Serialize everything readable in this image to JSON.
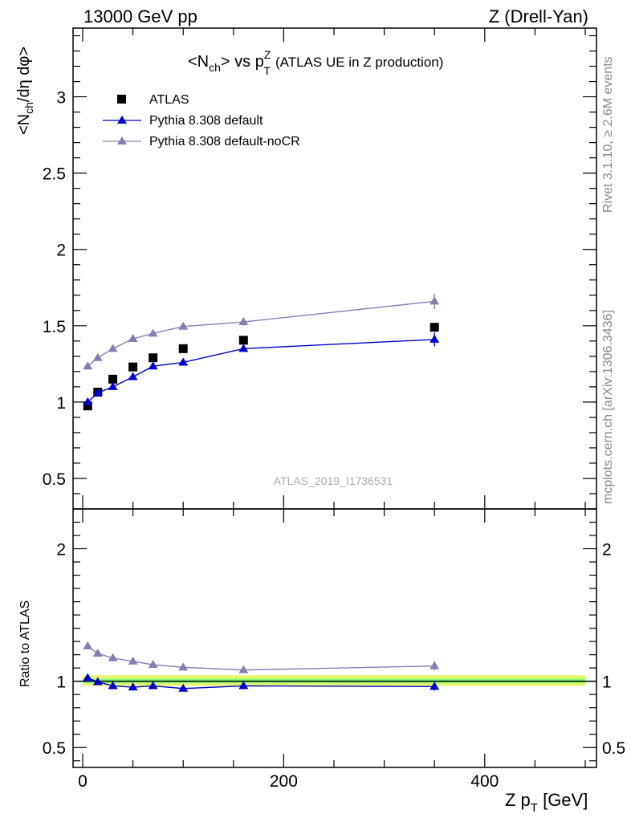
{
  "header": {
    "left": "13000 GeV pp",
    "right": "Z (Drell-Yan)"
  },
  "side_labels": {
    "rivet": "Rivet 3.1.10, ≥ 2.6M events",
    "mcplots": "mcplots.cern.ch [arXiv:1306.3436]"
  },
  "plot": {
    "title_main": "<N",
    "title_sub": "ch",
    "title_vs": "> vs p",
    "title_supZ": "Z",
    "title_subT": "T",
    "title_extra": "(ATLAS UE in Z production)",
    "ylabel": "<N_ch/dη dφ>",
    "ylabel_pre": "<N",
    "ylabel_sub": "ch",
    "ylabel_post": "/dη dφ>",
    "ratio_ylabel": "Ratio to ATLAS",
    "xlabel_pre": "Z p",
    "xlabel_sub": "T",
    "xlabel_post": " [GeV]",
    "reference": "ATLAS_2019_I1736531"
  },
  "colors": {
    "data": "#000000",
    "default": "#0000cc",
    "noCR": "#8080b3",
    "band_outer": "#eaf56e",
    "band_inner": "#88ff7a"
  },
  "chart_data": {
    "type": "scatter",
    "x_range": [
      0,
      500
    ],
    "ylim_main": [
      0.3,
      3.45
    ],
    "ylim_ratio": [
      0.35,
      2.3
    ],
    "x_ticks": [
      0,
      200,
      400
    ],
    "y_ticks_main": [
      0.5,
      1,
      1.5,
      2,
      2.5,
      3
    ],
    "y_ticks_ratio": [
      0.5,
      1,
      2
    ],
    "x": [
      5,
      15,
      30,
      50,
      70,
      100,
      160,
      350
    ],
    "series": [
      {
        "name": "ATLAS",
        "marker": "square",
        "values": [
          0.975,
          1.065,
          1.15,
          1.23,
          1.29,
          1.35,
          1.405,
          1.49
        ]
      },
      {
        "name": "Pythia 8.308 default",
        "marker": "triangle",
        "values": [
          1.0,
          1.06,
          1.1,
          1.165,
          1.235,
          1.26,
          1.35,
          1.41
        ],
        "errors": [
          0.01,
          0.01,
          0.01,
          0.01,
          0.01,
          0.012,
          0.02,
          0.045
        ]
      },
      {
        "name": "Pythia 8.308 default-noCR",
        "marker": "triangle",
        "values": [
          1.235,
          1.29,
          1.35,
          1.415,
          1.45,
          1.495,
          1.525,
          1.66
        ],
        "errors": [
          0.01,
          0.01,
          0.01,
          0.01,
          0.01,
          0.012,
          0.025,
          0.05
        ]
      }
    ],
    "ratio_series": [
      {
        "name": "Pythia 8.308 default",
        "values": [
          1.025,
          0.995,
          0.965,
          0.955,
          0.965,
          0.945,
          0.965,
          0.96
        ],
        "errors": [
          0.01,
          0.01,
          0.01,
          0.01,
          0.01,
          0.01,
          0.015,
          0.03
        ]
      },
      {
        "name": "Pythia 8.308 default-noCR",
        "values": [
          1.265,
          1.21,
          1.175,
          1.15,
          1.125,
          1.105,
          1.085,
          1.115
        ],
        "errors": [
          0.01,
          0.01,
          0.01,
          0.01,
          0.01,
          0.01,
          0.015,
          0.035
        ]
      }
    ],
    "ratio_band": {
      "outer": [
        0.965,
        1.045
      ],
      "inner": [
        0.985,
        1.02
      ]
    }
  }
}
